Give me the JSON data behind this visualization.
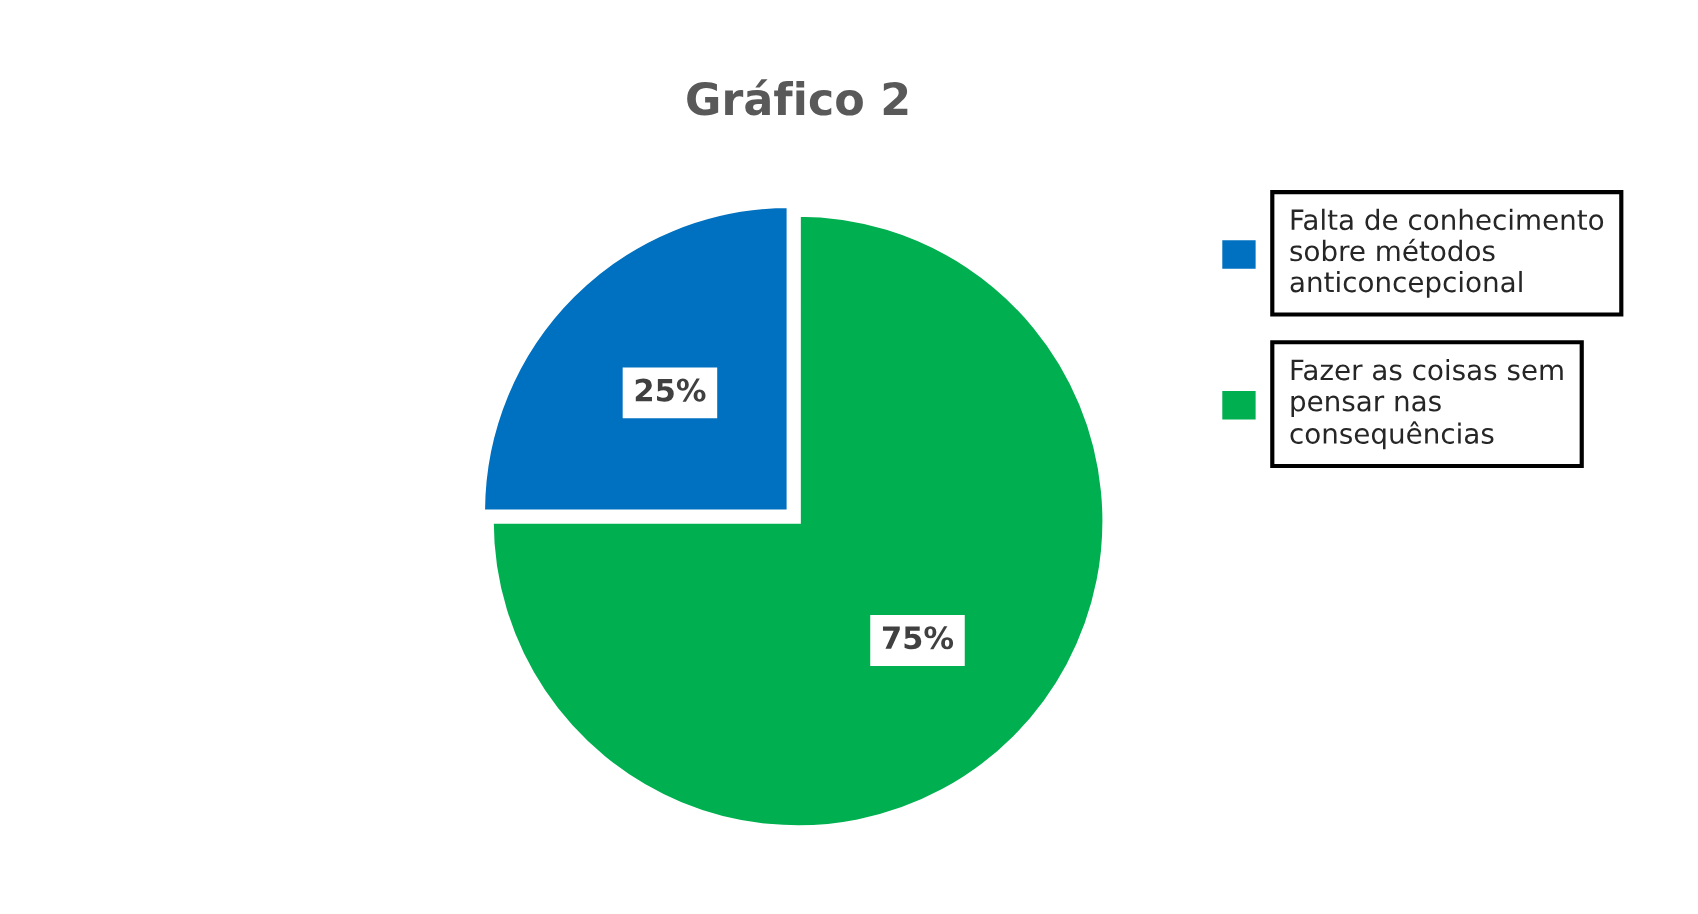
{
  "chart_data": {
    "type": "pie",
    "title": "Gráfico 2",
    "categories": [
      "Falta de conhecimento\nsobre métodos\nanticoncepcional",
      "Fazer as coisas sem\npensar nas\nconsequências"
    ],
    "values": [
      25,
      75
    ],
    "colors": [
      "#0070c0",
      "#00b050"
    ],
    "value_labels": [
      "25%",
      "75%"
    ],
    "legend": "right"
  }
}
